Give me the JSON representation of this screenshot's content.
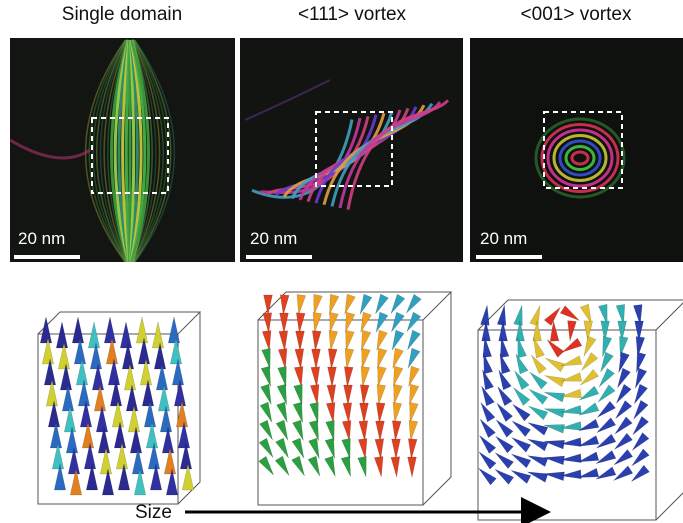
{
  "panels": [
    {
      "title": "Single domain",
      "scale_bar": "20 nm"
    },
    {
      "title": "<111> vortex",
      "scale_bar": "20 nm"
    },
    {
      "title": "<001> vortex",
      "scale_bar": "20 nm"
    }
  ],
  "axis_label": "Size"
}
